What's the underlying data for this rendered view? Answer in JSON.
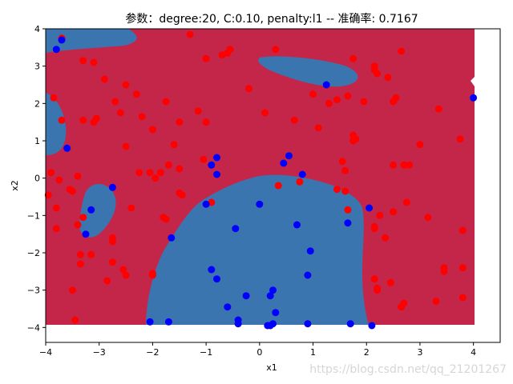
{
  "chart_data": {
    "type": "scatter",
    "title": "参数：degree:20, C:0.10, penalty:l1 -- 准确率: 0.7167",
    "xlabel": "x1",
    "ylabel": "x2",
    "xlim": [
      -4,
      4.5
    ],
    "ylim": [
      -4.4,
      4
    ],
    "xticks": [
      -4,
      -3,
      -2,
      -1,
      0,
      1,
      2,
      3,
      4
    ],
    "yticks": [
      -4,
      -3,
      -2,
      -1,
      0,
      1,
      2,
      3,
      4
    ],
    "grid": false,
    "legend": "none",
    "background_regions": {
      "region_red_color": "#c4264a",
      "region_blue_color": "#3b75af",
      "region_extent": {
        "x": [
          -4,
          4
        ],
        "y": [
          -4,
          4
        ]
      }
    },
    "series": [
      {
        "color": "#ff0000",
        "points": [
          [
            -3.7,
            3.75
          ],
          [
            -3.3,
            3.15
          ],
          [
            -3.1,
            3.1
          ],
          [
            -2.9,
            2.65
          ],
          [
            -2.5,
            2.5
          ],
          [
            -2.3,
            2.25
          ],
          [
            -2.7,
            2.05
          ],
          [
            -2.6,
            1.75
          ],
          [
            -2.2,
            1.65
          ],
          [
            -1.75,
            2.05
          ],
          [
            -1.15,
            1.8
          ],
          [
            -1.0,
            1.5
          ],
          [
            -1.0,
            3.2
          ],
          [
            -0.55,
            3.45
          ],
          [
            -0.6,
            3.35
          ],
          [
            -0.7,
            3.3
          ],
          [
            -1.3,
            3.85
          ],
          [
            0.3,
            3.45
          ],
          [
            1.75,
            3.2
          ],
          [
            -3.85,
            2.15
          ],
          [
            -3.7,
            1.55
          ],
          [
            -3.3,
            1.55
          ],
          [
            -3.1,
            1.5
          ],
          [
            -3.05,
            1.6
          ],
          [
            -2.0,
            1.3
          ],
          [
            -1.6,
            0.9
          ],
          [
            -1.5,
            1.5
          ],
          [
            -2.5,
            0.85
          ],
          [
            -3.9,
            0.15
          ],
          [
            -3.75,
            -0.05
          ],
          [
            -3.55,
            -0.3
          ],
          [
            -3.4,
            0.05
          ],
          [
            -3.5,
            -0.35
          ],
          [
            -3.95,
            -0.45
          ],
          [
            -3.8,
            -0.8
          ],
          [
            -3.8,
            -1.35
          ],
          [
            -3.3,
            -1.05
          ],
          [
            -3.4,
            -1.25
          ],
          [
            -3.35,
            -2.05
          ],
          [
            -3.35,
            -2.3
          ],
          [
            -3.15,
            -2.05
          ],
          [
            -2.85,
            -2.75
          ],
          [
            -2.75,
            -1.6
          ],
          [
            -2.75,
            -1.7
          ],
          [
            -2.75,
            -2.25
          ],
          [
            -2.55,
            -2.45
          ],
          [
            -2.5,
            -2.6
          ],
          [
            -2.4,
            -0.8
          ],
          [
            -2.25,
            0.15
          ],
          [
            -2.05,
            0.15
          ],
          [
            -2.0,
            -2.55
          ],
          [
            -2.0,
            -2.6
          ],
          [
            -1.95,
            0.0
          ],
          [
            -1.85,
            0.15
          ],
          [
            -1.8,
            -1.05
          ],
          [
            -1.75,
            -1.1
          ],
          [
            -1.7,
            0.35
          ],
          [
            -1.5,
            -0.4
          ],
          [
            -1.45,
            -0.45
          ],
          [
            -1.5,
            0.25
          ],
          [
            -1.05,
            0.5
          ],
          [
            -0.9,
            -0.65
          ],
          [
            -3.5,
            -3.0
          ],
          [
            -3.45,
            -3.8
          ],
          [
            -0.2,
            2.4
          ],
          [
            0.1,
            1.75
          ],
          [
            0.65,
            1.55
          ],
          [
            1.0,
            2.25
          ],
          [
            1.1,
            1.35
          ],
          [
            1.3,
            2.0
          ],
          [
            1.45,
            2.1
          ],
          [
            1.55,
            0.45
          ],
          [
            1.45,
            -0.3
          ],
          [
            1.6,
            -0.35
          ],
          [
            1.6,
            0.2
          ],
          [
            1.65,
            2.2
          ],
          [
            1.75,
            1.15
          ],
          [
            1.8,
            1.05
          ],
          [
            1.75,
            1.0
          ],
          [
            1.95,
            2.05
          ],
          [
            2.15,
            2.9
          ],
          [
            2.2,
            2.8
          ],
          [
            2.15,
            3.0
          ],
          [
            2.4,
            2.7
          ],
          [
            2.5,
            2.05
          ],
          [
            2.55,
            2.15
          ],
          [
            2.65,
            3.4
          ],
          [
            2.25,
            -1.0
          ],
          [
            2.35,
            -1.6
          ],
          [
            2.5,
            -0.9
          ],
          [
            2.5,
            0.35
          ],
          [
            2.7,
            0.35
          ],
          [
            2.75,
            -0.65
          ],
          [
            2.8,
            0.35
          ],
          [
            3.0,
            0.9
          ],
          [
            3.15,
            -1.05
          ],
          [
            3.35,
            1.85
          ],
          [
            3.45,
            -2.4
          ],
          [
            3.45,
            -2.5
          ],
          [
            3.3,
            -3.3
          ],
          [
            3.75,
            1.05
          ],
          [
            3.8,
            -1.4
          ],
          [
            3.8,
            -2.4
          ],
          [
            3.8,
            -3.2
          ],
          [
            2.15,
            -2.7
          ],
          [
            2.2,
            -3.0
          ],
          [
            2.45,
            -2.8
          ],
          [
            2.65,
            -3.45
          ],
          [
            2.7,
            -3.35
          ],
          [
            2.15,
            -1.3
          ],
          [
            2.15,
            -1.35
          ],
          [
            2.2,
            -2.95
          ],
          [
            1.65,
            -0.85
          ],
          [
            0.35,
            -0.2
          ],
          [
            0.75,
            -0.1
          ]
        ]
      },
      {
        "color": "#0000ff",
        "points": [
          [
            -3.7,
            3.7
          ],
          [
            -3.8,
            3.45
          ],
          [
            -3.6,
            0.8
          ],
          [
            -2.75,
            -0.25
          ],
          [
            -3.15,
            -0.85
          ],
          [
            -3.25,
            -1.5
          ],
          [
            -1.65,
            -1.6
          ],
          [
            -0.8,
            0.55
          ],
          [
            -0.9,
            0.35
          ],
          [
            -0.8,
            0.1
          ],
          [
            -1.0,
            -0.7
          ],
          [
            -0.45,
            -1.35
          ],
          [
            0.0,
            -0.7
          ],
          [
            0.45,
            0.4
          ],
          [
            0.55,
            0.6
          ],
          [
            0.8,
            0.1
          ],
          [
            1.25,
            2.5
          ],
          [
            1.65,
            -1.2
          ],
          [
            2.05,
            -0.8
          ],
          [
            4.0,
            2.15
          ],
          [
            0.7,
            -1.25
          ],
          [
            0.95,
            -1.95
          ],
          [
            0.9,
            -2.6
          ],
          [
            -0.9,
            -2.45
          ],
          [
            -0.8,
            -2.7
          ],
          [
            -0.6,
            -3.45
          ],
          [
            -0.4,
            -3.8
          ],
          [
            -0.4,
            -3.9
          ],
          [
            -0.25,
            -3.15
          ],
          [
            0.2,
            -3.15
          ],
          [
            0.25,
            -3.0
          ],
          [
            0.3,
            -3.6
          ],
          [
            0.25,
            -3.9
          ],
          [
            0.15,
            -3.95
          ],
          [
            0.2,
            -3.95
          ],
          [
            0.9,
            -3.9
          ],
          [
            1.7,
            -3.9
          ],
          [
            2.1,
            -3.95
          ],
          [
            -2.05,
            -3.85
          ],
          [
            -1.7,
            -3.85
          ]
        ]
      }
    ]
  },
  "watermark": "https://blog.csdn.net/qq_21201267"
}
